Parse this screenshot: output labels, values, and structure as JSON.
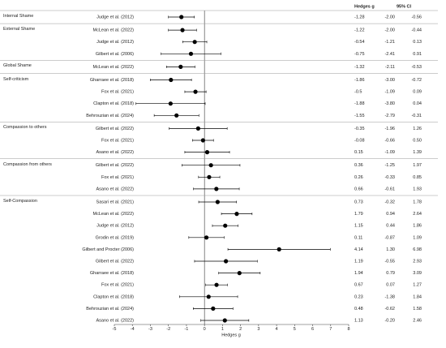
{
  "chart_data": {
    "type": "forest",
    "columns": [
      "Hedges g",
      "95% CI"
    ],
    "xlabel": "Hedges g",
    "xlim": [
      -5,
      8
    ],
    "xticks": [
      -5,
      -4,
      -3,
      -2,
      -1,
      0,
      1,
      2,
      3,
      4,
      5,
      6,
      7,
      8
    ],
    "color": "#000000",
    "groups": [
      {
        "name": "Internal Shame",
        "rows": [
          {
            "study": "Judge et al. (2012)",
            "values": [
              -1.28,
              -2.0,
              -0.56
            ],
            "value_labels": [
              "-1.28",
              "-2.00",
              "-0.56"
            ]
          }
        ]
      },
      {
        "name": "External Shame",
        "rows": [
          {
            "study": "McLean et al. (2022)",
            "values": [
              -1.22,
              -2.0,
              -0.44
            ],
            "value_labels": [
              "-1.22",
              "-2.00",
              "-0.44"
            ]
          },
          {
            "study": "Judge et al. (2012)",
            "values": [
              -0.54,
              -1.21,
              0.13
            ],
            "value_labels": [
              "-0.54",
              "-1.21",
              "0.13"
            ]
          },
          {
            "study": "Gilbert et al. (2006)",
            "values": [
              -0.75,
              -2.41,
              0.91
            ],
            "value_labels": [
              "-0.75",
              "-2.41",
              "0.91"
            ]
          }
        ]
      },
      {
        "name": "Global Shame",
        "rows": [
          {
            "study": "McLean et al. (2022)",
            "values": [
              -1.32,
              -2.11,
              -0.53
            ],
            "value_labels": [
              "-1.32",
              "-2.11",
              "-0.53"
            ]
          }
        ]
      },
      {
        "name": "Self-criticism",
        "rows": [
          {
            "study": "Gharraee et al. (2018)",
            "values": [
              -1.86,
              -3.0,
              -0.72
            ],
            "value_labels": [
              "-1.86",
              "-3.00",
              "-0.72"
            ]
          },
          {
            "study": "Fox et al. (2021)",
            "values": [
              -0.5,
              -1.09,
              0.09
            ],
            "value_labels": [
              "-0.5",
              "-1.09",
              "0.09"
            ]
          },
          {
            "study": "Clapton et al. (2018)",
            "values": [
              -1.88,
              -3.8,
              0.04
            ],
            "value_labels": [
              "-1.88",
              "-3.80",
              "0.04"
            ]
          },
          {
            "study": "Behrouzian et al. (2024)",
            "values": [
              -1.55,
              -2.79,
              -0.31
            ],
            "value_labels": [
              "-1.55",
              "-2.79",
              "-0.31"
            ]
          }
        ]
      },
      {
        "name": "Compassion to others",
        "rows": [
          {
            "study": "Gilbert et al. (2022)",
            "values": [
              -0.35,
              -1.96,
              1.26
            ],
            "value_labels": [
              "-0.35",
              "-1.96",
              "1.26"
            ]
          },
          {
            "study": "Fox et al. (2021)",
            "values": [
              -0.08,
              -0.66,
              0.5
            ],
            "value_labels": [
              "-0.08",
              "-0.66",
              "0.50"
            ]
          },
          {
            "study": "Asano et al. (2022)",
            "values": [
              0.15,
              -1.09,
              1.39
            ],
            "value_labels": [
              "0.15",
              "-1.09",
              "1.39"
            ]
          }
        ]
      },
      {
        "name": "Compassion from others",
        "rows": [
          {
            "study": "Gilbert et al. (2022)",
            "values": [
              0.36,
              -1.25,
              1.97
            ],
            "value_labels": [
              "0.36",
              "-1.25",
              "1.97"
            ]
          },
          {
            "study": "Fox et al. (2021)",
            "values": [
              0.26,
              -0.33,
              0.85
            ],
            "value_labels": [
              "0.26",
              "-0.33",
              "0.85"
            ]
          },
          {
            "study": "Asano et al. (2022)",
            "values": [
              0.66,
              -0.61,
              1.93
            ],
            "value_labels": [
              "0.66",
              "-0.61",
              "1.93"
            ]
          }
        ]
      },
      {
        "name": "Self-Compassion",
        "rows": [
          {
            "study": "Sasari et al. (2021)",
            "values": [
              0.73,
              -0.32,
              1.78
            ],
            "value_labels": [
              "0.73",
              "-0.32",
              "1.78"
            ]
          },
          {
            "study": "McLean et al. (2022)",
            "values": [
              1.79,
              0.94,
              2.64
            ],
            "value_labels": [
              "1.79",
              "0.94",
              "2.64"
            ]
          },
          {
            "study": "Judge et al. (2012)",
            "values": [
              1.15,
              0.44,
              1.86
            ],
            "value_labels": [
              "1.15",
              "0.44",
              "1.86"
            ]
          },
          {
            "study": "Grodin et al. (2019)",
            "values": [
              0.11,
              -0.87,
              1.09
            ],
            "value_labels": [
              "0.11",
              "-0.87",
              "1.09"
            ]
          },
          {
            "study": "Gilbert and Procter (2006)",
            "values": [
              4.14,
              1.3,
              6.98
            ],
            "value_labels": [
              "4.14",
              "1.30",
              "6.98"
            ]
          },
          {
            "study": "Gilbert et al. (2022)",
            "values": [
              1.19,
              -0.55,
              2.93
            ],
            "value_labels": [
              "1.19",
              "-0.55",
              "2.93"
            ]
          },
          {
            "study": "Gharraee et al. (2018)",
            "values": [
              1.94,
              0.79,
              3.09
            ],
            "value_labels": [
              "1.94",
              "0.79",
              "3.09"
            ]
          },
          {
            "study": "Fox et al. (2021)",
            "values": [
              0.67,
              0.07,
              1.27
            ],
            "value_labels": [
              "0.67",
              "0.07",
              "1.27"
            ]
          },
          {
            "study": "Clapton et al. (2018)",
            "values": [
              0.23,
              -1.38,
              1.84
            ],
            "value_labels": [
              "0.23",
              "-1.38",
              "1.84"
            ]
          },
          {
            "study": "Behrouzian et al. (2024)",
            "values": [
              0.48,
              -0.62,
              1.58
            ],
            "value_labels": [
              "0.48",
              "-0.62",
              "1.58"
            ]
          },
          {
            "study": "Asano et al. (2022)",
            "values": [
              1.13,
              -0.2,
              2.46
            ],
            "value_labels": [
              "1.13",
              "-0.20",
              "2.46"
            ]
          }
        ]
      }
    ]
  }
}
